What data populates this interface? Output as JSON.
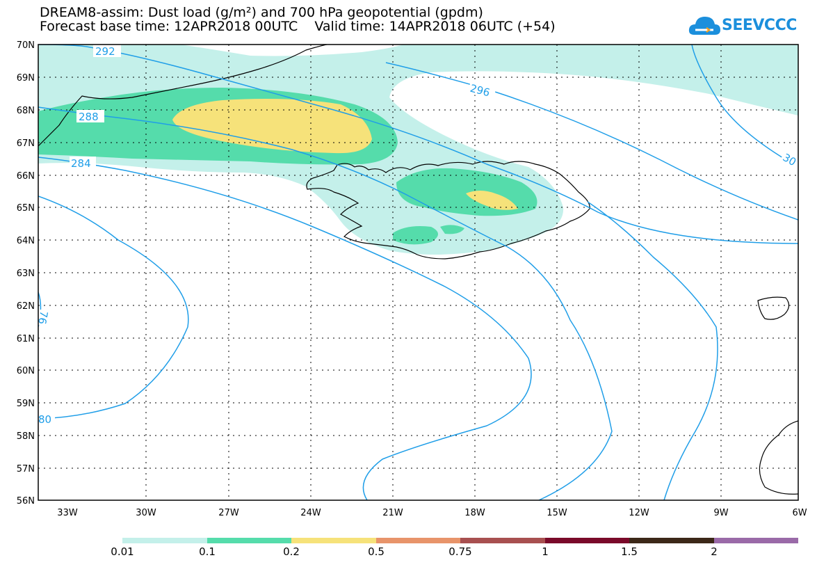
{
  "title": {
    "line1": "DREAM8-assim: Dust load (g/m²) and 700 hPa geopotential (gpdm)",
    "base_time": "Forecast base time: 12APR2018 00UTC",
    "valid_time": "Valid time: 14APR2018 06UTC (+54)"
  },
  "logo": {
    "text": "SEEVCCC",
    "icon": "cloud-logo-icon",
    "color": "#1b8fdc"
  },
  "axes": {
    "lat_labels": [
      "70N",
      "69N",
      "68N",
      "67N",
      "66N",
      "65N",
      "64N",
      "63N",
      "62N",
      "61N",
      "60N",
      "59N",
      "58N",
      "57N",
      "56N"
    ],
    "lon_labels": [
      "33W",
      "30W",
      "27W",
      "24W",
      "21W",
      "18W",
      "15W",
      "12W",
      "9W",
      "6W"
    ]
  },
  "contours": {
    "color": "#1f9ee8",
    "labels": [
      "292",
      "288",
      "284",
      "296",
      "30",
      "76",
      "80"
    ]
  },
  "colorbar": {
    "colors": [
      "#c4f0ea",
      "#55dcab",
      "#f6e27a",
      "#e8946a",
      "#a85050",
      "#7a0a2a",
      "#3c2818",
      "#9a6aa8"
    ],
    "labels": [
      "0.01",
      "0.1",
      "0.2",
      "0.5",
      "0.75",
      "1",
      "1.5",
      "2"
    ]
  }
}
